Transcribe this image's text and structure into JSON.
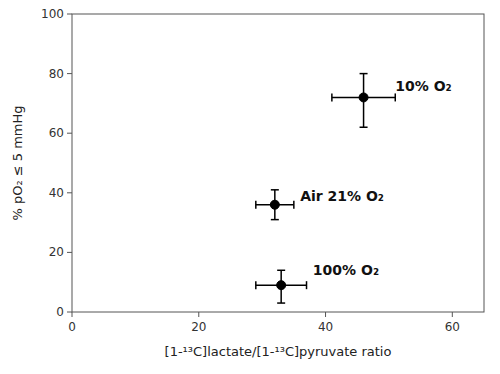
{
  "chart_data": {
    "type": "scatter",
    "xlabel": "[1-¹³C]lactate/[1-¹³C]pyruvate ratio",
    "ylabel": "% pO₂ ≤ 5 mmHg",
    "x": [
      32,
      46,
      33
    ],
    "values": [
      36,
      72,
      9
    ],
    "xerr_minus": [
      3,
      5,
      4
    ],
    "xerr_plus": [
      3,
      5,
      4
    ],
    "yerr_minus": [
      5,
      10,
      6
    ],
    "yerr_plus": [
      5,
      8,
      5
    ],
    "annotations": [
      {
        "text": "Air 21% O₂",
        "x": 36,
        "y": 39
      },
      {
        "text": "10% O₂",
        "x": 51,
        "y": 76
      },
      {
        "text": "100% O₂",
        "x": 38,
        "y": 14
      }
    ],
    "color": "black",
    "marker": "circle",
    "grid": false,
    "xlim": [
      0,
      65
    ],
    "ylim": [
      0,
      100
    ],
    "xticks": [
      0,
      20,
      40,
      60
    ],
    "yticks": [
      0,
      20,
      40,
      60,
      80,
      100
    ]
  }
}
